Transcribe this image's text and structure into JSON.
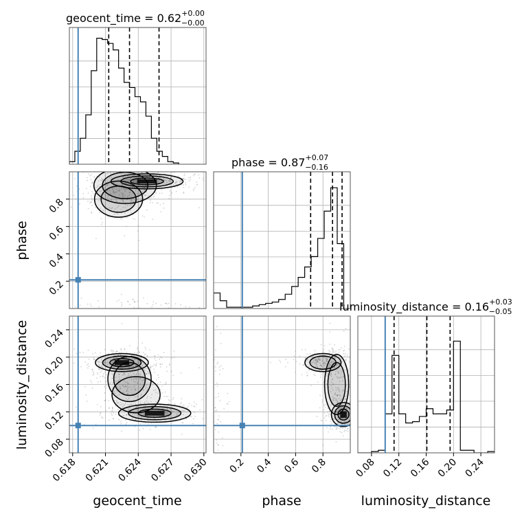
{
  "chart_data": {
    "type": "corner",
    "parameters": [
      "geocent_time",
      "phase",
      "luminosity_distance"
    ],
    "truths": {
      "geocent_time": 0.6185,
      "phase": 0.21,
      "luminosity_distance": 0.1
    },
    "colors": {
      "truth": "#4682b4",
      "hist": "#000000",
      "grid": "#b0b0b0",
      "density": "#000000",
      "points": "#808080"
    },
    "titles": [
      {
        "param": "geocent_time",
        "label": "geocent_time = 0.62",
        "plus": "+0.00",
        "minus": "−0.00"
      },
      {
        "param": "phase",
        "label": "phase = 0.87",
        "plus": "+0.07",
        "minus": "−0.16"
      },
      {
        "param": "luminosity_distance",
        "label": "luminosity_distance = 0.16",
        "plus": "+0.03",
        "minus": "−0.05"
      }
    ],
    "axis_labels": {
      "x": [
        "geocent_time",
        "phase",
        "luminosity_distance"
      ],
      "y": [
        "phase",
        "luminosity_distance"
      ]
    },
    "ranges": {
      "geocent_time": [
        0.6177,
        0.6302
      ],
      "phase": [
        0.0,
        1.0
      ],
      "luminosity_distance": [
        0.06,
        0.26
      ]
    },
    "ticks": {
      "geocent_time": [
        "0.618",
        "0.621",
        "0.624",
        "0.627",
        "0.630"
      ],
      "phase": [
        "0.2",
        "0.4",
        "0.6",
        "0.8"
      ],
      "luminosity_distance": [
        "0.08",
        "0.12",
        "0.16",
        "0.20",
        "0.24"
      ]
    },
    "histograms": {
      "geocent_time": {
        "bin_edges_start": 0.6177,
        "bin_width": 0.0005,
        "counts": [
          0.02,
          0.1,
          0.2,
          0.38,
          0.72,
          0.97,
          0.96,
          0.93,
          0.88,
          0.74,
          0.63,
          0.59,
          0.52,
          0.48,
          0.37,
          0.2,
          0.1,
          0.06,
          0.02,
          0.01
        ]
      },
      "phase": {
        "bin_edges_start": 0.0,
        "bin_width": 0.0476,
        "counts": [
          0.12,
          0.06,
          0.01,
          0.01,
          0.01,
          0.01,
          0.02,
          0.03,
          0.04,
          0.05,
          0.07,
          0.11,
          0.17,
          0.24,
          0.32,
          0.4,
          0.54,
          0.75,
          0.93,
          0.5
        ]
      },
      "luminosity_distance": {
        "bin_edges_start": 0.06,
        "bin_width": 0.01,
        "counts": [
          0.0,
          0.0,
          0.01,
          0.02,
          0.3,
          0.75,
          0.3,
          0.23,
          0.24,
          0.28,
          0.34,
          0.3,
          0.3,
          0.33,
          0.86,
          0.02,
          0.02,
          0.0,
          0.0,
          0.01
        ]
      }
    },
    "quantiles": {
      "geocent_time": [
        0.6213,
        0.6232,
        0.6259
      ],
      "phase": [
        0.71,
        0.87,
        0.94
      ],
      "luminosity_distance": [
        0.113,
        0.161,
        0.195
      ]
    },
    "density_blobs": {
      "phase_vs_geocent_time": [
        {
          "x": 0.6228,
          "y": 0.9,
          "sx": 0.0013,
          "sy": 0.06,
          "w": 0.7
        },
        {
          "x": 0.6248,
          "y": 0.93,
          "sx": 0.0015,
          "sy": 0.025,
          "w": 0.8
        },
        {
          "x": 0.6222,
          "y": 0.8,
          "sx": 0.001,
          "sy": 0.06,
          "w": 0.4
        },
        {
          "x": 0.6235,
          "y": 0.02,
          "sx": 0.002,
          "sy": 0.02,
          "w": 0.1
        }
      ],
      "luminosity_distance_vs_geocent_time": [
        {
          "x": 0.6225,
          "y": 0.192,
          "sx": 0.0011,
          "sy": 0.006,
          "w": 1.0
        },
        {
          "x": 0.6232,
          "y": 0.168,
          "sx": 0.0009,
          "sy": 0.015,
          "w": 0.4
        },
        {
          "x": 0.6255,
          "y": 0.118,
          "sx": 0.0015,
          "sy": 0.006,
          "w": 0.8
        },
        {
          "x": 0.6238,
          "y": 0.145,
          "sx": 0.001,
          "sy": 0.012,
          "w": 0.3
        }
      ],
      "luminosity_distance_vs_phase": [
        {
          "x": 0.8,
          "y": 0.192,
          "sx": 0.06,
          "sy": 0.006,
          "w": 0.7
        },
        {
          "x": 0.9,
          "y": 0.16,
          "sx": 0.04,
          "sy": 0.02,
          "w": 0.5
        },
        {
          "x": 0.95,
          "y": 0.116,
          "sx": 0.04,
          "sy": 0.008,
          "w": 1.0
        },
        {
          "x": 0.03,
          "y": 0.14,
          "sx": 0.02,
          "sy": 0.03,
          "w": 0.1
        }
      ]
    }
  }
}
